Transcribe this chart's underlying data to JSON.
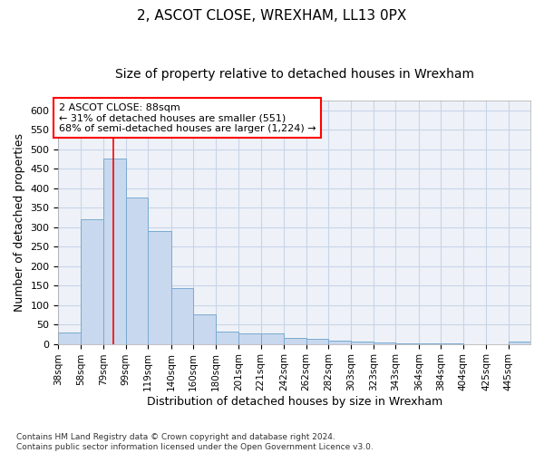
{
  "title": "2, ASCOT CLOSE, WREXHAM, LL13 0PX",
  "subtitle": "Size of property relative to detached houses in Wrexham",
  "xlabel": "Distribution of detached houses by size in Wrexham",
  "ylabel": "Number of detached properties",
  "bar_color": "#c8d8ee",
  "bar_edge_color": "#7aaad0",
  "grid_color": "#c8d4e8",
  "background_color": "#eef2f8",
  "vline_x": 88,
  "vline_color": "red",
  "annotation_text": "2 ASCOT CLOSE: 88sqm\n← 31% of detached houses are smaller (551)\n68% of semi-detached houses are larger (1,224) →",
  "bins": [
    38,
    58,
    79,
    99,
    119,
    140,
    160,
    180,
    201,
    221,
    242,
    262,
    282,
    303,
    323,
    343,
    364,
    384,
    404,
    425,
    445
  ],
  "bin_widths": [
    20,
    21,
    20,
    20,
    21,
    20,
    20,
    21,
    20,
    21,
    20,
    20,
    21,
    20,
    20,
    21,
    20,
    20,
    21,
    20,
    20
  ],
  "values": [
    30,
    320,
    475,
    375,
    290,
    143,
    77,
    32,
    27,
    27,
    16,
    14,
    8,
    5,
    4,
    2,
    1,
    1,
    0,
    0,
    5
  ],
  "ylim": [
    0,
    625
  ],
  "yticks": [
    0,
    50,
    100,
    150,
    200,
    250,
    300,
    350,
    400,
    450,
    500,
    550,
    600
  ],
  "footer_line1": "Contains HM Land Registry data © Crown copyright and database right 2024.",
  "footer_line2": "Contains public sector information licensed under the Open Government Licence v3.0."
}
